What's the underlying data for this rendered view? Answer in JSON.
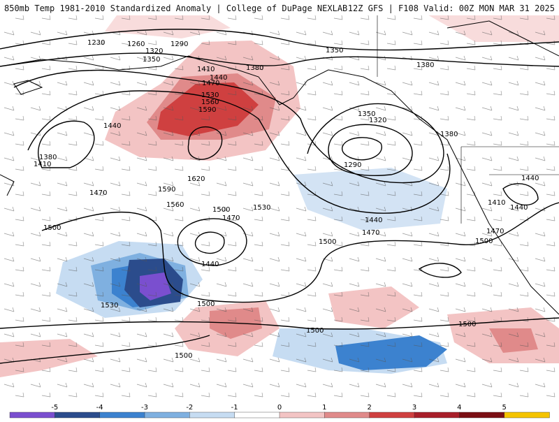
{
  "header": {
    "title_left": "850mb Temp 1981-2010 Standardized Anomaly | College of DuPage NEXLAB",
    "title_right": "12Z GFS | F108 Valid: 00Z MON MAR 31 2025"
  },
  "map": {
    "contour_labels": [
      "1230",
      "1260",
      "1290",
      "1320",
      "1350",
      "1350",
      "1380",
      "1380",
      "1410",
      "1440",
      "1470",
      "1530",
      "1560",
      "1590",
      "1380",
      "1410",
      "1440",
      "1470",
      "1500",
      "1620",
      "1590",
      "1560",
      "1500",
      "1470",
      "1530",
      "1440",
      "1500",
      "1530",
      "1350",
      "1320",
      "1290",
      "1380",
      "1440",
      "1470",
      "1500",
      "1440",
      "1410",
      "1440",
      "1470",
      "1500",
      "1500",
      "1500",
      "1500"
    ]
  },
  "colorbar": {
    "tick_labels": [
      "-5",
      "-4",
      "-3",
      "-2",
      "-1",
      "0",
      "1",
      "2",
      "3",
      "4",
      "5"
    ],
    "colors": [
      "#7a4fcf",
      "#2b4c8c",
      "#3c82cf",
      "#7fb0e0",
      "#c6dcf2",
      "#ffffff",
      "#f3c4c4",
      "#e08a8a",
      "#cf4040",
      "#a81f2a",
      "#7a0f14",
      "#f5c400"
    ]
  }
}
